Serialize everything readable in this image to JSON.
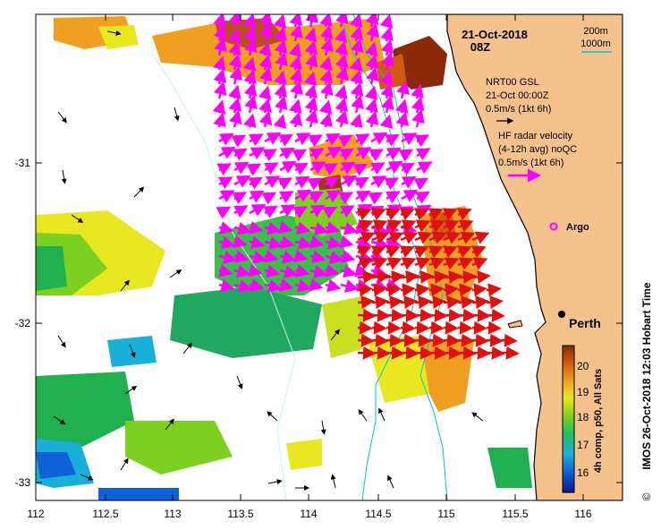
{
  "header": {
    "date": "21-Oct-2018",
    "time": "08Z"
  },
  "isobaths": {
    "label_a": "200m",
    "label_b": "1000m",
    "color_a": "#00c8c8",
    "color_b": "#00c8c8"
  },
  "legend_gsl": {
    "line1": "NRT00 GSL",
    "line2": "21-Oct 00:00Z",
    "line3": "0.5m/s (1kt 6h)",
    "arrow_color": "#000000"
  },
  "legend_hf": {
    "line1": "HF radar velocity",
    "line2": "(4-12h avg) noQC",
    "line3": "0.5m/s (1kt 6h)",
    "arrow_color": "#ff00ff"
  },
  "argo": {
    "label": "Argo",
    "color": "#ff00ff"
  },
  "city": {
    "label": "Perth"
  },
  "axes": {
    "x_ticks": [
      "112",
      "112.5",
      "113",
      "113.5",
      "114",
      "114.5",
      "115",
      "115.5",
      "116"
    ],
    "y_ticks": [
      "-31",
      "-32",
      "-33"
    ]
  },
  "colorbar": {
    "label": "4h comp, p50, All Sats",
    "ticks": [
      "16",
      "17",
      "18",
      "19",
      "20"
    ],
    "range": [
      15.5,
      20.8
    ],
    "colors": [
      "#0a1a8c",
      "#1060d8",
      "#18b0d8",
      "#20c060",
      "#7cd020",
      "#e8e820",
      "#f0a020",
      "#d05a10",
      "#8a2a08"
    ]
  },
  "credit": "IMOS 26-Oct-2018 12:03 Hobart Time",
  "copyright": "©",
  "colors": {
    "land": "#f5c28e",
    "current_arrow": "#000000",
    "hf_magenta": "#ff00ff",
    "hf_red": "#e01010"
  }
}
